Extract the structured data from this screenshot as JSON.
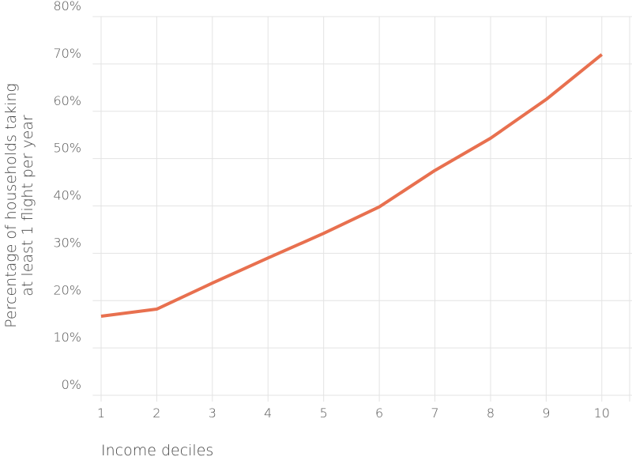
{
  "chart_data": {
    "type": "line",
    "xlabel": "Income deciles",
    "ylabel": [
      "Percentage of households taking",
      "at least 1 flight per year"
    ],
    "x": [
      1,
      2,
      3,
      4,
      5,
      6,
      7,
      8,
      9,
      10
    ],
    "series": [
      {
        "color": "#e8704f",
        "values": [
          16.7,
          18.2,
          23.7,
          29,
          34.2,
          39.8,
          47.5,
          54.3,
          62.5,
          72
        ]
      }
    ],
    "xlim": [
      0.85,
      10.5
    ],
    "xticks": [
      1,
      2,
      3,
      4,
      5,
      6,
      7,
      8,
      9,
      10
    ],
    "ylim": [
      0,
      80
    ],
    "yticks": [
      {
        "value": 0,
        "label": "0%"
      },
      {
        "value": 10,
        "label": "10%"
      },
      {
        "value": 20,
        "label": "20%"
      },
      {
        "value": 30,
        "label": "30%"
      },
      {
        "value": 40,
        "label": "40%"
      },
      {
        "value": 50,
        "label": "50%"
      },
      {
        "value": 60,
        "label": "60%"
      },
      {
        "value": 70,
        "label": "70%"
      },
      {
        "value": 80,
        "label": "80%"
      }
    ],
    "grid": true
  }
}
